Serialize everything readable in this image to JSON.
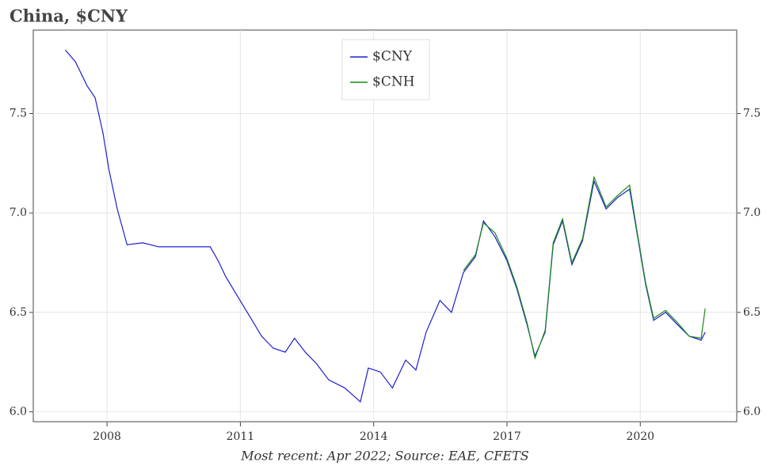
{
  "chart_data": {
    "type": "line",
    "title": "China, $CNY",
    "footnote": "Most recent: Apr 2022; Source: EAE, CFETS",
    "x": [
      2007.06,
      2007.29,
      2007.55,
      2007.73,
      2007.91,
      2008.04,
      2008.23,
      2008.45,
      2008.8,
      2009.16,
      2009.69,
      2010.32,
      2010.5,
      2010.67,
      2010.94,
      2011.21,
      2011.48,
      2011.74,
      2012.01,
      2012.22,
      2012.46,
      2012.72,
      2012.99,
      2013.35,
      2013.7,
      2013.88,
      2014.15,
      2014.42,
      2014.72,
      2014.95,
      2015.18,
      2015.49,
      2015.75,
      2016.02,
      2016.29,
      2016.47,
      2016.73,
      2017.0,
      2017.22,
      2017.45,
      2017.63,
      2017.86,
      2018.04,
      2018.25,
      2018.46,
      2018.7,
      2018.96,
      2019.23,
      2019.5,
      2019.76,
      2019.94,
      2020.12,
      2020.3,
      2020.57,
      2020.83,
      2021.1,
      2021.37,
      2021.46
    ],
    "series": [
      {
        "name": "$CNY",
        "color": "#1f1fd0",
        "values": [
          7.82,
          7.76,
          7.64,
          7.58,
          7.4,
          7.22,
          7.02,
          6.84,
          6.85,
          6.83,
          6.83,
          6.83,
          6.76,
          6.68,
          6.58,
          6.48,
          6.38,
          6.32,
          6.3,
          6.37,
          6.3,
          6.24,
          6.16,
          6.12,
          6.05,
          6.22,
          6.2,
          6.12,
          6.26,
          6.21,
          6.4,
          6.56,
          6.5,
          6.7,
          6.78,
          6.96,
          6.88,
          6.76,
          6.62,
          6.44,
          6.28,
          6.4,
          6.84,
          6.96,
          6.74,
          6.86,
          7.16,
          7.02,
          7.08,
          7.12,
          6.88,
          6.64,
          6.46,
          6.5,
          6.44,
          6.38,
          6.36,
          6.4
        ]
      },
      {
        "name": "$CNH",
        "color": "#1a8a1a",
        "values": [
          null,
          null,
          null,
          null,
          null,
          null,
          null,
          null,
          null,
          null,
          null,
          null,
          null,
          null,
          null,
          null,
          null,
          null,
          null,
          null,
          null,
          null,
          null,
          null,
          null,
          null,
          null,
          null,
          null,
          null,
          null,
          null,
          null,
          6.71,
          6.79,
          6.95,
          6.9,
          6.77,
          6.63,
          6.45,
          6.27,
          6.41,
          6.85,
          6.97,
          6.75,
          6.87,
          7.18,
          7.03,
          7.09,
          7.14,
          6.89,
          6.65,
          6.47,
          6.51,
          6.45,
          6.38,
          6.37,
          6.52
        ]
      }
    ],
    "xlim": [
      2006.34,
      2022.17
    ],
    "xticks": [
      2008,
      2011,
      2014,
      2017,
      2020
    ],
    "ylim": [
      5.95,
      7.92
    ],
    "yticks": [
      {
        "value": 6,
        "label": "6.0"
      },
      6.5,
      {
        "value": 7,
        "label": "7.0"
      },
      7.5
    ],
    "grid": true,
    "legend": "upper center"
  }
}
